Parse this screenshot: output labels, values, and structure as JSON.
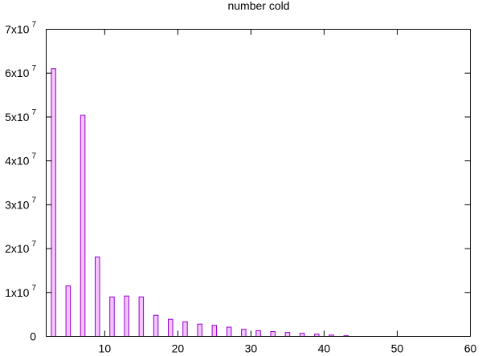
{
  "chart_data": {
    "type": "bar",
    "title": "number cold",
    "xlabel": "",
    "ylabel": "",
    "xlim": [
      2,
      60
    ],
    "ylim": [
      0,
      70000000
    ],
    "x_ticks": [
      {
        "value": 10,
        "label": "10"
      },
      {
        "value": 20,
        "label": "20"
      },
      {
        "value": 30,
        "label": "30"
      },
      {
        "value": 40,
        "label": "40"
      },
      {
        "value": 50,
        "label": "50"
      },
      {
        "value": 60,
        "label": "60"
      }
    ],
    "y_ticks": [
      {
        "value": 0,
        "label": "0",
        "exp": ""
      },
      {
        "value": 10000000,
        "label": "1x10",
        "exp": "7"
      },
      {
        "value": 20000000,
        "label": "2x10",
        "exp": "7"
      },
      {
        "value": 30000000,
        "label": "3x10",
        "exp": "7"
      },
      {
        "value": 40000000,
        "label": "4x10",
        "exp": "7"
      },
      {
        "value": 50000000,
        "label": "5x10",
        "exp": "7"
      },
      {
        "value": 60000000,
        "label": "6x10",
        "exp": "7"
      },
      {
        "value": 70000000,
        "label": "7x10",
        "exp": "7"
      }
    ],
    "bar_width": 0.6,
    "series": [
      {
        "name": "number cold",
        "x": [
          3,
          5,
          7,
          9,
          11,
          13,
          15,
          17,
          19,
          21,
          23,
          25,
          27,
          29,
          31,
          33,
          35,
          37,
          39,
          41,
          43
        ],
        "values": [
          61000000,
          11500000,
          50400000,
          18100000,
          9000000,
          9200000,
          9000000,
          4800000,
          3900000,
          3300000,
          2800000,
          2500000,
          2100000,
          1600000,
          1300000,
          1100000,
          900000,
          700000,
          500000,
          300000,
          150000
        ]
      }
    ],
    "colors": {
      "fill": "#f4c4fc",
      "stroke": "#9400d3"
    },
    "grid": false
  }
}
